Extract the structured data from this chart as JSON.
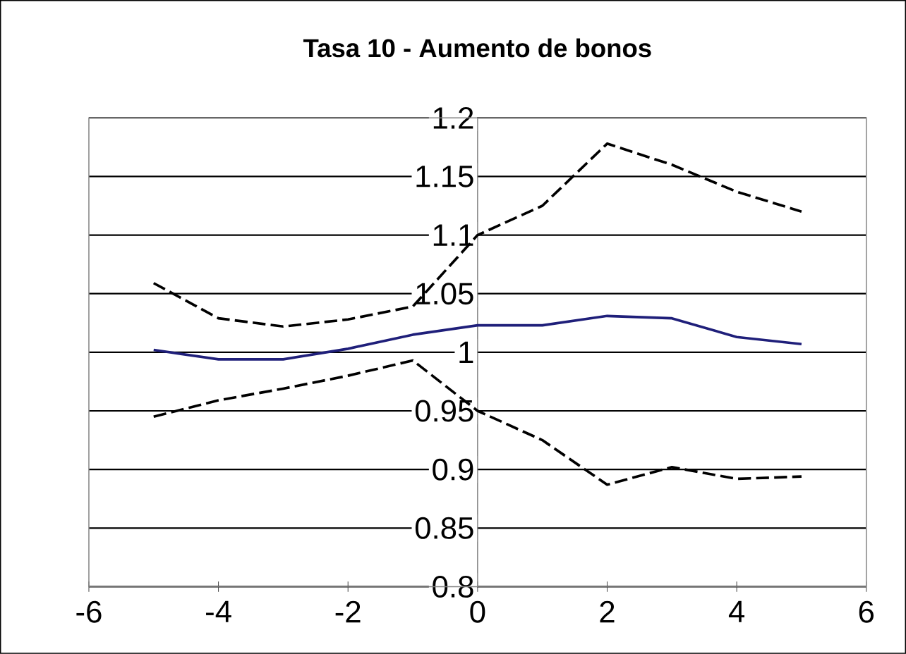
{
  "chart_data": {
    "type": "line",
    "title": "Tasa 10 - Aumento de bonos",
    "x": [
      -5,
      -4,
      -3,
      -2,
      -1,
      0,
      1,
      2,
      3,
      4,
      5
    ],
    "series": [
      {
        "color": "#000000",
        "line_style": "dashed",
        "values": [
          1.059,
          1.029,
          1.022,
          1.028,
          1.039,
          1.1,
          1.125,
          1.178,
          1.16,
          1.137,
          1.12
        ]
      },
      {
        "color": "#1f1f7a",
        "line_style": "solid",
        "values": [
          1.002,
          0.994,
          0.994,
          1.003,
          1.015,
          1.023,
          1.023,
          1.031,
          1.029,
          1.013,
          1.007
        ]
      },
      {
        "color": "#000000",
        "line_style": "dashed",
        "values": [
          0.945,
          0.959,
          0.969,
          0.98,
          0.993,
          0.95,
          0.925,
          0.887,
          0.902,
          0.892,
          0.894
        ]
      }
    ],
    "xlim": [
      -6,
      6
    ],
    "xticks": [
      -6,
      -4,
      -2,
      0,
      2,
      4,
      6
    ],
    "ylim": [
      0.8,
      1.2
    ],
    "yticks": [
      0.8,
      0.85,
      0.9,
      0.95,
      1,
      1.05,
      1.1,
      1.15,
      1.2
    ],
    "grid": "y",
    "legend": false,
    "marker": "none"
  }
}
